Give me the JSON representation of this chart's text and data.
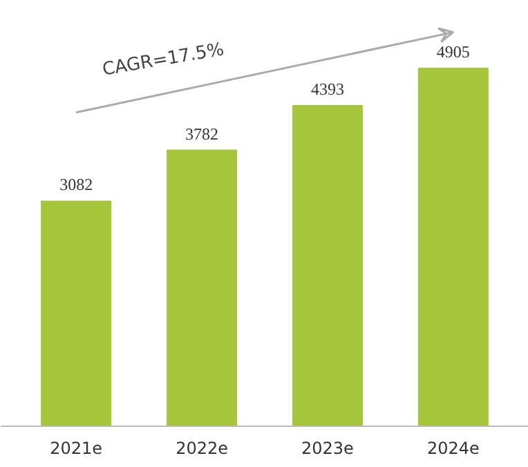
{
  "chart_data": {
    "type": "bar",
    "categories": [
      "2021e",
      "2022e",
      "2023e",
      "2024e"
    ],
    "series": [
      {
        "color": "#a5c63b",
        "values": [
          3082,
          3782,
          4393,
          4905
        ],
        "value_labels": [
          "3082",
          "3782",
          "4393",
          "4905"
        ]
      },
      {
        "type": "line",
        "x": [
          "2021e",
          "2024e"
        ],
        "values": [
          4300,
          5400
        ],
        "color": "#aaaaaa"
      }
    ],
    "tick_labels": "x",
    "annotations": [
      "CAGR=17.5%"
    ]
  }
}
